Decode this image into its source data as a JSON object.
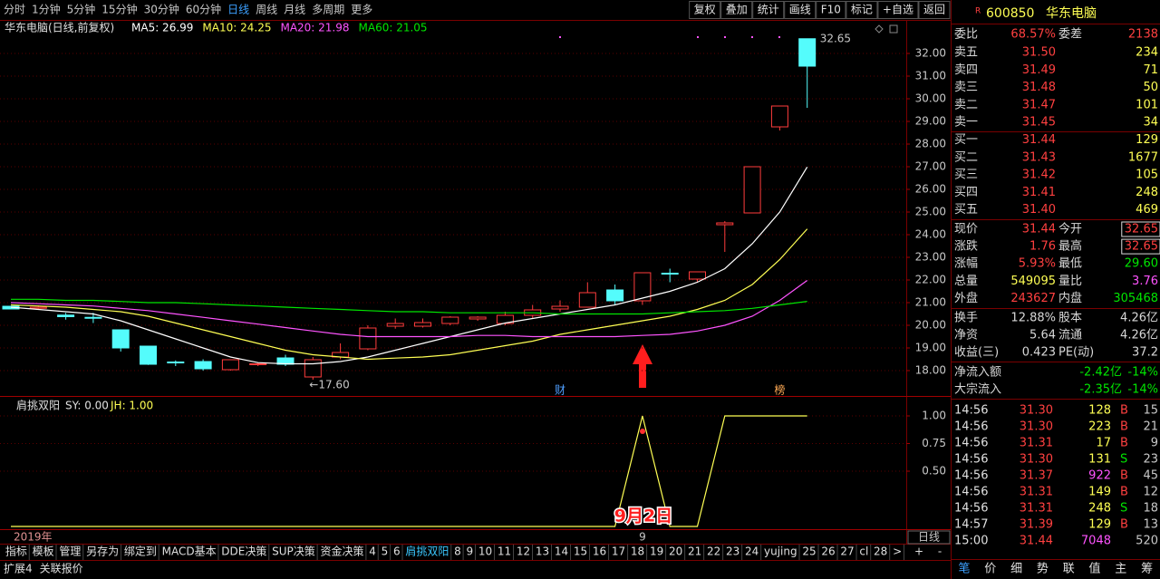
{
  "toolbar": {
    "periods": [
      "分时",
      "1分钟",
      "5分钟",
      "15分钟",
      "30分钟",
      "60分钟",
      "日线",
      "周线",
      "月线",
      "多周期",
      "更多"
    ],
    "active": 6,
    "buttons": [
      "复权",
      "叠加",
      "统计",
      "画线",
      "F10",
      "标记",
      "+自选",
      "返回"
    ]
  },
  "chart_data": [
    {
      "type": "candlestick",
      "title": "华东电脑(日线,前复权)",
      "categories": [
        null,
        null,
        null,
        null,
        null,
        null,
        null,
        null,
        null,
        null,
        null,
        null,
        null,
        null,
        null,
        null,
        null,
        null,
        null,
        null,
        null,
        null,
        null,
        "9",
        null,
        null,
        null,
        null,
        null,
        null
      ],
      "year_label": "2019年",
      "period_label": "日线",
      "open": [
        20.84,
        20.75,
        20.45,
        20.35,
        19.8,
        19.08,
        18.38,
        18.4,
        18.04,
        18.26,
        18.56,
        17.72,
        18.6,
        18.96,
        19.96,
        19.96,
        20.08,
        20.28,
        20.08,
        20.44,
        20.72,
        20.8,
        21.56,
        21.08,
        22.3,
        22.04,
        24.44,
        24.96,
        28.76,
        32.65
      ],
      "high": [
        20.86,
        20.88,
        20.55,
        20.55,
        19.82,
        19.1,
        18.45,
        18.5,
        18.5,
        18.35,
        18.7,
        18.6,
        19.2,
        20.0,
        20.3,
        20.3,
        20.4,
        20.4,
        20.6,
        20.9,
        21.1,
        21.9,
        21.8,
        22.32,
        22.5,
        22.36,
        24.6,
        27.0,
        29.68,
        32.65
      ],
      "low": [
        20.7,
        20.7,
        20.25,
        20.1,
        18.84,
        18.25,
        18.2,
        18.0,
        18.0,
        18.2,
        18.2,
        17.6,
        18.5,
        18.9,
        19.85,
        19.9,
        20.0,
        20.2,
        20.0,
        20.3,
        20.6,
        20.8,
        20.9,
        20.9,
        21.9,
        21.9,
        23.24,
        24.96,
        28.6,
        29.6
      ],
      "close": [
        20.72,
        20.8,
        20.38,
        20.33,
        19.0,
        18.28,
        18.34,
        18.08,
        18.48,
        18.3,
        18.28,
        18.48,
        18.8,
        19.88,
        20.08,
        20.12,
        20.36,
        20.36,
        20.44,
        20.68,
        20.84,
        21.44,
        21.08,
        22.32,
        22.26,
        22.36,
        24.52,
        27.0,
        29.68,
        31.44
      ],
      "up_color": "#ff3c3c",
      "down_color": "#54fcfc",
      "series": [
        {
          "name": "MA5: 26.99",
          "color": "#ffffff",
          "values": [
            20.8,
            20.7,
            20.6,
            20.5,
            20.2,
            19.8,
            19.4,
            19.0,
            18.6,
            18.35,
            18.3,
            18.3,
            18.4,
            18.6,
            18.9,
            19.2,
            19.5,
            19.8,
            20.1,
            20.3,
            20.5,
            20.7,
            20.9,
            21.2,
            21.5,
            21.9,
            22.5,
            23.6,
            25.0,
            26.99
          ]
        },
        {
          "name": "MA10: 24.25",
          "color": "#ffff54",
          "values": [
            20.9,
            20.85,
            20.8,
            20.7,
            20.6,
            20.4,
            20.1,
            19.8,
            19.5,
            19.2,
            18.9,
            18.7,
            18.6,
            18.5,
            18.55,
            18.6,
            18.7,
            18.9,
            19.1,
            19.3,
            19.6,
            19.8,
            20.0,
            20.2,
            20.4,
            20.7,
            21.1,
            21.8,
            22.9,
            24.25
          ]
        },
        {
          "name": "MA20: 21.98",
          "color": "#ff54ff",
          "values": [
            21.0,
            20.95,
            20.9,
            20.85,
            20.75,
            20.65,
            20.5,
            20.35,
            20.2,
            20.05,
            19.9,
            19.75,
            19.6,
            19.5,
            19.5,
            19.5,
            19.5,
            19.55,
            19.55,
            19.5,
            19.5,
            19.5,
            19.5,
            19.55,
            19.6,
            19.75,
            20.0,
            20.4,
            21.1,
            21.98
          ]
        },
        {
          "name": "MA60: 21.05",
          "color": "#00e600",
          "values": [
            21.15,
            21.15,
            21.1,
            21.1,
            21.05,
            21.0,
            21.0,
            20.95,
            20.9,
            20.85,
            20.8,
            20.75,
            20.7,
            20.65,
            20.6,
            20.6,
            20.55,
            20.55,
            20.55,
            20.55,
            20.5,
            20.5,
            20.5,
            20.5,
            20.55,
            20.6,
            20.65,
            20.75,
            20.9,
            21.05
          ]
        }
      ],
      "ylim": [
        16.88,
        32.76
      ],
      "yticks": [
        {
          "value": 18,
          "label": "18.00"
        },
        {
          "value": 19,
          "label": "19.00"
        },
        {
          "value": 20,
          "label": "20.00"
        },
        {
          "value": 21,
          "label": "21.00"
        },
        {
          "value": 22,
          "label": "22.00"
        },
        {
          "value": 23,
          "label": "23.00"
        },
        {
          "value": 24,
          "label": "24.00"
        },
        {
          "value": 25,
          "label": "25.00"
        },
        {
          "value": 26,
          "label": "26.00"
        },
        {
          "value": 27,
          "label": "27.00"
        },
        {
          "value": 28,
          "label": "28.00"
        },
        {
          "value": 29,
          "label": "29.00"
        },
        {
          "value": 30,
          "label": "30.00"
        },
        {
          "value": 31,
          "label": "31.00"
        },
        {
          "value": 32,
          "label": "32.00"
        }
      ],
      "grid": true,
      "annotations": {
        "low": "←17.60",
        "high": "32.65",
        "marker_a": "财",
        "marker_b": "榜",
        "date_note": "9月2日"
      }
    },
    {
      "type": "line",
      "title": "肩挑双阳",
      "header": [
        "SY: 0.00"
      ],
      "series": [
        {
          "name": "JH: 1.00",
          "color": "#ffff54",
          "values": [
            0,
            0,
            0,
            0,
            0,
            0,
            0,
            0,
            0,
            0,
            0,
            0,
            0,
            0,
            0,
            0,
            0,
            0,
            0,
            0,
            0,
            0,
            0,
            1,
            0,
            0,
            1,
            1,
            1,
            1
          ]
        }
      ],
      "ylim": [
        -0.016,
        1.09
      ],
      "yticks": [
        {
          "value": 0.5,
          "label": "0.50"
        },
        {
          "value": 0.75,
          "label": "0.75"
        },
        {
          "value": 1,
          "label": "1.00"
        }
      ],
      "grid": true
    }
  ],
  "bottom_tabs": {
    "items": [
      "指标",
      "模板",
      "管理",
      "另存为",
      "绑定到",
      "MACD基本",
      "DDE决策",
      "SUP决策",
      "资金决策",
      "4",
      "5",
      "6",
      "肩挑双阳",
      "8",
      "9",
      "10",
      "11",
      "12",
      "13",
      "14",
      "15",
      "16",
      "17",
      "18",
      "19",
      "20",
      "21",
      "22",
      "23",
      "24",
      "yujing",
      "25",
      "26",
      "27",
      "cl",
      "28",
      ">"
    ],
    "active": 12,
    "tools": [
      "+",
      "-"
    ],
    "extra": [
      "扩展4",
      "关联报价"
    ]
  },
  "quote": {
    "mark": "R",
    "code": "600850",
    "name": "华东电脑",
    "webi": [
      {
        "text": "委比"
      },
      {
        "text": "68.57%",
        "color": "#ff4040"
      },
      {
        "text": "委差"
      },
      {
        "text": "2138",
        "color": "#ff4040"
      }
    ],
    "book": [
      [
        {
          "text": "卖五"
        },
        {
          "text": "31.50",
          "color": "#ff4040"
        },
        {
          "text": "234",
          "color": "#ffff54"
        }
      ],
      [
        {
          "text": "卖四"
        },
        {
          "text": "31.49",
          "color": "#ff4040"
        },
        {
          "text": "71",
          "color": "#ffff54"
        }
      ],
      [
        {
          "text": "卖三"
        },
        {
          "text": "31.48",
          "color": "#ff4040"
        },
        {
          "text": "50",
          "color": "#ffff54"
        }
      ],
      [
        {
          "text": "卖二"
        },
        {
          "text": "31.47",
          "color": "#ff4040"
        },
        {
          "text": "101",
          "color": "#ffff54"
        }
      ],
      [
        {
          "text": "卖一"
        },
        {
          "text": "31.45",
          "color": "#ff4040"
        },
        {
          "text": "34",
          "color": "#ffff54"
        }
      ],
      [
        {
          "text": "买一"
        },
        {
          "text": "31.44",
          "color": "#ff4040"
        },
        {
          "text": "129",
          "color": "#ffff54"
        }
      ],
      [
        {
          "text": "买二"
        },
        {
          "text": "31.43",
          "color": "#ff4040"
        },
        {
          "text": "1677",
          "color": "#ffff54"
        }
      ],
      [
        {
          "text": "买三"
        },
        {
          "text": "31.42",
          "color": "#ff4040"
        },
        {
          "text": "105",
          "color": "#ffff54"
        }
      ],
      [
        {
          "text": "买四"
        },
        {
          "text": "31.41",
          "color": "#ff4040"
        },
        {
          "text": "248",
          "color": "#ffff54"
        }
      ],
      [
        {
          "text": "买五"
        },
        {
          "text": "31.40",
          "color": "#ff4040"
        },
        {
          "text": "469",
          "color": "#ffff54"
        }
      ]
    ],
    "stats": [
      [
        {
          "text": "现价"
        },
        {
          "text": "31.44",
          "color": "#ff4040"
        },
        {
          "text": "今开"
        },
        {
          "text": "32.65",
          "color": "#ff4040",
          "boxed": true
        }
      ],
      [
        {
          "text": "涨跌"
        },
        {
          "text": "1.76",
          "color": "#ff4040"
        },
        {
          "text": "最高"
        },
        {
          "text": "32.65",
          "color": "#ff4040",
          "boxed": true
        }
      ],
      [
        {
          "text": "涨幅"
        },
        {
          "text": "5.93%",
          "color": "#ff4040"
        },
        {
          "text": "最低"
        },
        {
          "text": "29.60",
          "color": "#00e600"
        }
      ],
      [
        {
          "text": "总量"
        },
        {
          "text": "549095",
          "color": "#ffff54"
        },
        {
          "text": "量比"
        },
        {
          "text": "3.76",
          "color": "#ff54ff"
        }
      ],
      [
        {
          "text": "外盘"
        },
        {
          "text": "243627",
          "color": "#ff4040"
        },
        {
          "text": "内盘"
        },
        {
          "text": "305468",
          "color": "#00e600"
        }
      ]
    ],
    "stats2": [
      [
        {
          "text": "换手"
        },
        {
          "text": "12.88%"
        },
        {
          "text": "股本"
        },
        {
          "text": "4.26亿"
        }
      ],
      [
        {
          "text": "净资"
        },
        {
          "text": "5.64"
        },
        {
          "text": "流通"
        },
        {
          "text": "4.26亿"
        }
      ],
      [
        {
          "text": "收益(三)"
        },
        {
          "text": "0.423"
        },
        {
          "text": "PE(动)"
        },
        {
          "text": "37.2"
        }
      ]
    ],
    "flow": [
      [
        {
          "text": "净流入额"
        },
        {
          "text": "-2.42亿",
          "color": "#00e600"
        },
        {
          "text": "-14%",
          "color": "#00e600"
        }
      ],
      [
        {
          "text": "大宗流入"
        },
        {
          "text": "-2.35亿",
          "color": "#00e600"
        },
        {
          "text": "-14%",
          "color": "#00e600"
        }
      ]
    ],
    "ticks": [
      {
        "time": "14:56",
        "price": "31.30",
        "volume": "128",
        "side": "B",
        "count": "15"
      },
      {
        "time": "14:56",
        "price": "31.30",
        "volume": "223",
        "side": "B",
        "count": "21"
      },
      {
        "time": "14:56",
        "price": "31.31",
        "volume": "17",
        "side": "B",
        "count": "9"
      },
      {
        "time": "14:56",
        "price": "31.30",
        "volume": "131",
        "side": "S",
        "count": "23"
      },
      {
        "time": "14:56",
        "price": "31.37",
        "volume": "922",
        "side": "B",
        "count": "45"
      },
      {
        "time": "14:56",
        "price": "31.31",
        "volume": "149",
        "side": "B",
        "count": "12"
      },
      {
        "time": "14:56",
        "price": "31.31",
        "volume": "248",
        "side": "S",
        "count": "18"
      },
      {
        "time": "14:57",
        "price": "31.39",
        "volume": "129",
        "side": "B",
        "count": "13"
      },
      {
        "time": "15:00",
        "price": "31.44",
        "volume": "7048",
        "count": "520"
      }
    ],
    "tabs": [
      "笔",
      "价",
      "细",
      "势",
      "联",
      "值",
      "主",
      "筹"
    ]
  }
}
